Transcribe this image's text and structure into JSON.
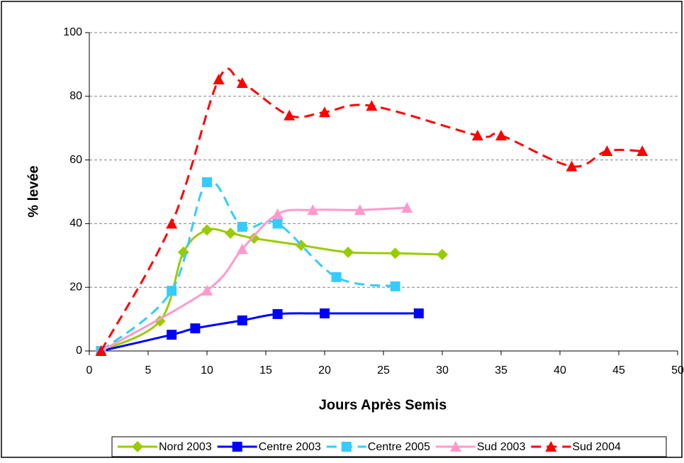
{
  "chart_data": {
    "type": "line",
    "xlabel": "Jours Après Semis",
    "ylabel": "% levée",
    "xlim": [
      0,
      50
    ],
    "xticks": [
      0,
      5,
      10,
      15,
      20,
      25,
      30,
      35,
      40,
      45,
      50
    ],
    "ylim": [
      0,
      100
    ],
    "yticks": [
      0,
      20,
      40,
      60,
      80,
      100
    ],
    "grid": true,
    "smooth": true,
    "legend": "bottom",
    "series": [
      {
        "name": "Nord 2003",
        "color": "#99cc00",
        "marker": "diamond",
        "dashed": false,
        "x": [
          1,
          6,
          8,
          10,
          12,
          14,
          18,
          22,
          26,
          30
        ],
        "values": [
          0,
          9.4,
          31,
          38,
          37,
          35.4,
          33.2,
          31,
          30.7,
          30.3
        ]
      },
      {
        "name": "Centre 2003",
        "color": "#0000ff",
        "marker": "square",
        "dashed": false,
        "x": [
          1,
          7,
          9,
          13,
          16,
          20,
          28
        ],
        "values": [
          0,
          5.1,
          7.1,
          9.6,
          11.6,
          11.8,
          11.8
        ]
      },
      {
        "name": "Centre 2005",
        "color": "#33ccff",
        "marker": "square",
        "dashed": true,
        "x": [
          1,
          7,
          10,
          13,
          16,
          21,
          26
        ],
        "values": [
          0,
          18.9,
          53,
          39,
          40,
          23.2,
          20.3
        ]
      },
      {
        "name": "Sud 2003",
        "color": "#ff99cc",
        "marker": "triangle",
        "dashed": false,
        "x": [
          1,
          10,
          13,
          16,
          19,
          23,
          27
        ],
        "values": [
          0,
          19,
          32,
          43,
          44.3,
          44.3,
          45
        ]
      },
      {
        "name": "Sud 2004",
        "color": "#ff0000",
        "marker": "triangle",
        "dashed": true,
        "x": [
          1,
          7,
          11,
          13,
          17,
          20,
          24,
          33,
          35,
          41,
          44,
          47
        ],
        "values": [
          0,
          40,
          85.3,
          84.2,
          74,
          75,
          77,
          67.7,
          67.7,
          58,
          62.8,
          62.8
        ]
      }
    ]
  }
}
